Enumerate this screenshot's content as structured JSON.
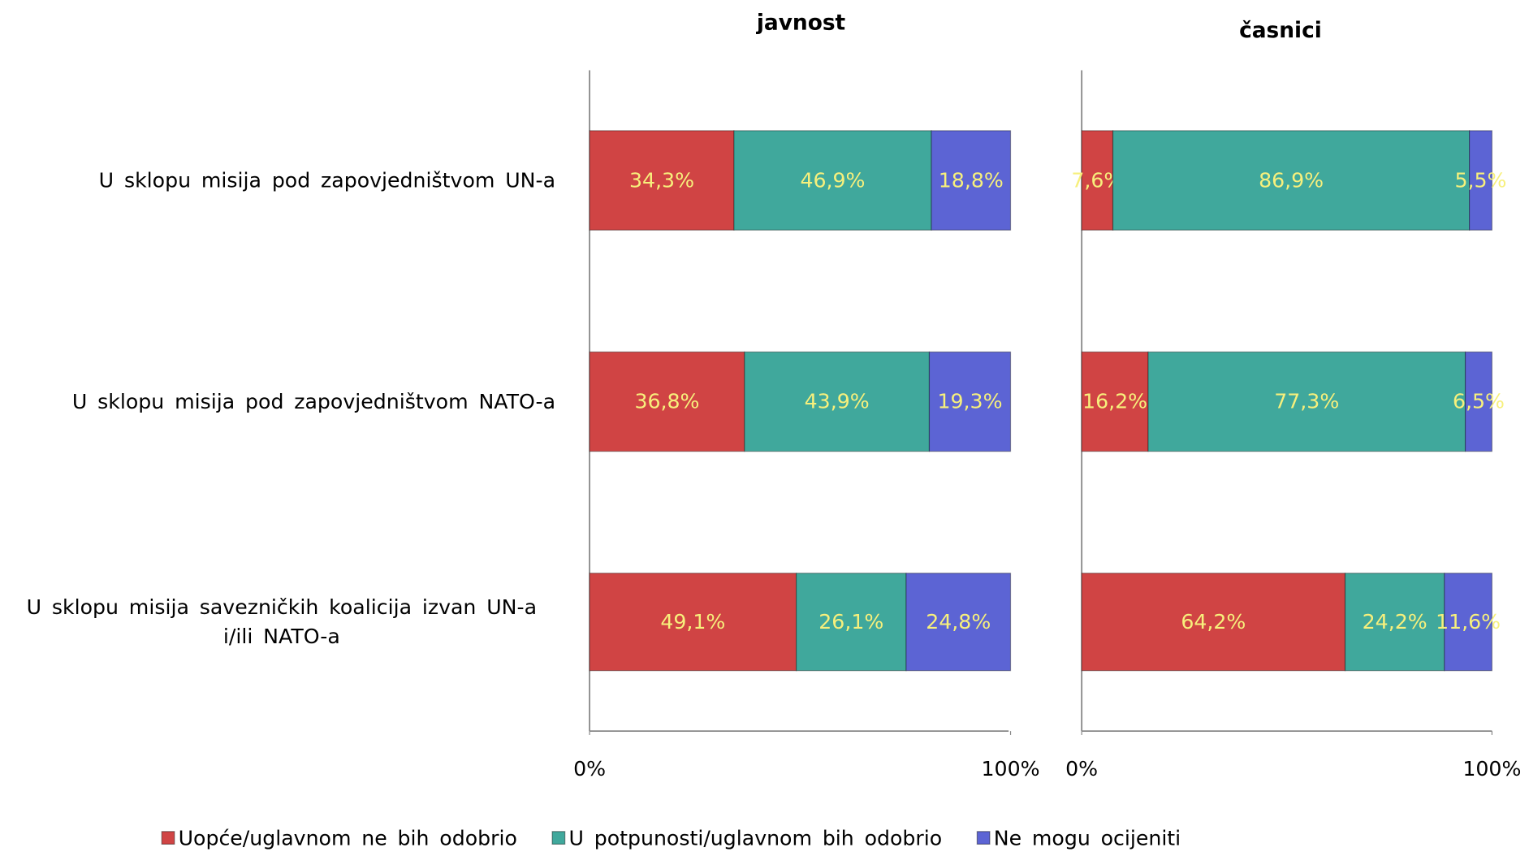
{
  "chart_data": [
    {
      "type": "stacked-bar-horizontal",
      "title": "javnost",
      "categories": [
        "U sklopu misija pod zapovjedništvom UN-a",
        "U sklopu misija pod zapovjedništvom NATO-a",
        "U sklopu misija savezničkih koalicija izvan UN-a i/ili NATO-a"
      ],
      "series": [
        {
          "name": "Uopće/uglavnom ne bih odobrio",
          "color": "#d04444",
          "values": [
            34.3,
            36.8,
            49.1
          ],
          "value_labels": [
            "34,3%",
            "36,8%",
            "49,1%"
          ]
        },
        {
          "name": "U potpunosti/uglavnom bih odobrio",
          "color": "#40a89c",
          "values": [
            46.9,
            43.9,
            26.1
          ],
          "value_labels": [
            "46,9%",
            "43,9%",
            "26,1%"
          ]
        },
        {
          "name": "Ne mogu ocijeniti",
          "color": "#5c64d4",
          "values": [
            18.8,
            19.3,
            24.8
          ],
          "value_labels": [
            "18,8%",
            "19,3%",
            "24,8%"
          ]
        }
      ],
      "xlim": [
        0,
        100
      ],
      "xticks": [
        {
          "value": 0,
          "label": "0%"
        },
        {
          "value": 100,
          "label": "100%"
        }
      ]
    },
    {
      "type": "stacked-bar-horizontal",
      "title": "časnici",
      "series": [
        {
          "color": "#d04444",
          "values": [
            7.6,
            16.2,
            64.2
          ],
          "value_labels": [
            "7,6%",
            "16,2%",
            "64,2%"
          ]
        },
        {
          "color": "#40a89c",
          "values": [
            86.9,
            77.3,
            24.2
          ],
          "value_labels": [
            "86,9%",
            "77,3%",
            "24,2%"
          ]
        },
        {
          "color": "#5c64d4",
          "values": [
            5.5,
            6.5,
            11.6
          ],
          "value_labels": [
            "5,5%",
            "6,5%",
            "11,6%"
          ]
        }
      ],
      "xlim": [
        0,
        100
      ],
      "xticks": [
        {
          "value": 0,
          "label": "0%"
        },
        {
          "value": 100,
          "label": "100%"
        }
      ]
    }
  ]
}
